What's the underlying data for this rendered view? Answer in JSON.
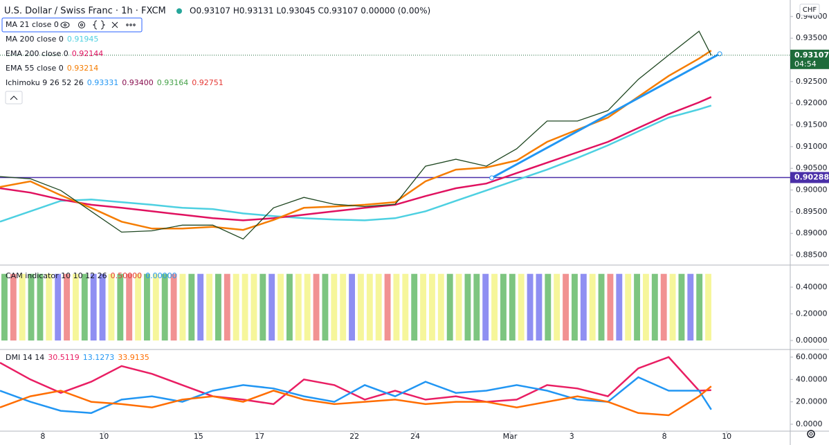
{
  "header": {
    "title": "U.S. Dollar / Swiss Franc · 1h · FXCM",
    "ohlc": "O0.93107 H0.93131 L0.93045 C0.93107 0.00000 (0.00%)"
  },
  "chart_data": [
    {
      "type": "line",
      "unit": "CHF",
      "xlim": [
        0,
        26
      ],
      "ylim": [
        0.8827,
        0.9438
      ],
      "yticks": [
        {
          "value": 0.885,
          "label": "0.88500"
        },
        {
          "value": 0.89,
          "label": "0.89000"
        },
        {
          "value": 0.895,
          "label": "0.89500"
        },
        {
          "value": 0.9,
          "label": "0.90000"
        },
        {
          "value": 0.905,
          "label": "0.90500"
        },
        {
          "value": 0.91,
          "label": "0.91000"
        },
        {
          "value": 0.915,
          "label": "0.91500"
        },
        {
          "value": 0.92,
          "label": "0.92000"
        },
        {
          "value": 0.925,
          "label": "0.92500"
        },
        {
          "value": 0.935,
          "label": "0.93500"
        },
        {
          "value": 0.94,
          "label": "0.94000"
        }
      ],
      "x": [
        0,
        1,
        2,
        3,
        4,
        5,
        6,
        7,
        8,
        9,
        10,
        11,
        12,
        13,
        14,
        15,
        16,
        17,
        18,
        19,
        20,
        21,
        22,
        23,
        23.4
      ],
      "series": [
        {
          "name": "MA 200 close 0",
          "color": "#4dd0e1",
          "legend_value": "0.91945",
          "values": [
            0.8927,
            0.8951,
            0.8975,
            0.8978,
            0.8972,
            0.8966,
            0.8959,
            0.8956,
            0.8946,
            0.894,
            0.8935,
            0.8932,
            0.893,
            0.8935,
            0.8951,
            0.8975,
            0.8999,
            0.9023,
            0.9047,
            0.9074,
            0.9103,
            0.9135,
            0.9167,
            0.9186,
            0.91945
          ]
        },
        {
          "name": "EMA 200 close 0",
          "color": "#e0115f",
          "legend_value": "0.92144",
          "values": [
            0.9004,
            0.8994,
            0.8978,
            0.8966,
            0.8959,
            0.8951,
            0.8943,
            0.8935,
            0.893,
            0.8935,
            0.8943,
            0.8951,
            0.8959,
            0.8966,
            0.8986,
            0.9004,
            0.9015,
            0.9039,
            0.9063,
            0.9087,
            0.9111,
            0.9143,
            0.9175,
            0.9202,
            0.92144
          ]
        },
        {
          "name": "EMA 55 close 0",
          "color": "#f57c00",
          "legend_value": "0.93214",
          "values": [
            0.9007,
            0.902,
            0.8988,
            0.8959,
            0.8927,
            0.8911,
            0.8911,
            0.8915,
            0.8908,
            0.8931,
            0.8959,
            0.8962,
            0.8966,
            0.8972,
            0.902,
            0.9047,
            0.9052,
            0.9068,
            0.9111,
            0.9139,
            0.9167,
            0.9215,
            0.9263,
            0.9303,
            0.93214
          ]
        },
        {
          "name": "MA 21 close 0",
          "color": "#1e4620",
          "values": [
            0.9031,
            0.9026,
            0.8999,
            0.8951,
            0.8903,
            0.8906,
            0.8919,
            0.8919,
            0.8887,
            0.8959,
            0.8983,
            0.8967,
            0.8962,
            0.8967,
            0.9055,
            0.9071,
            0.9055,
            0.9095,
            0.9159,
            0.9159,
            0.9183,
            0.9255,
            0.9311,
            0.9366,
            0.93107
          ]
        }
      ],
      "ichimoku": {
        "name": "Ichimoku 9 26 52 26",
        "values": [
          "0.93331",
          "0.93400",
          "0.93164",
          "0.92751"
        ],
        "colors": [
          "#2196f3",
          "#880e4f",
          "#43a047",
          "#e53935"
        ]
      },
      "trendline": {
        "x": [
          16.18,
          23.68
        ],
        "values": [
          0.9028,
          0.9314
        ],
        "color": "#2196f3"
      },
      "hline": {
        "value": 0.90288,
        "label": "0.90288",
        "color": "#4a2fa8"
      },
      "last_price": {
        "value": 0.93107,
        "label": "0.93107",
        "countdown": "04:54",
        "color": "#1e6b3a"
      }
    },
    {
      "type": "bar",
      "title": "CAM indicator 10 10 12 26",
      "legend_values": [
        "0.50000",
        "0.00000"
      ],
      "legend_colors": [
        "#e53935",
        "#2196f3"
      ],
      "ylim": [
        -0.0675,
        0.566
      ],
      "yticks": [
        {
          "value": 0,
          "label": "0.00000"
        },
        {
          "value": 0.2,
          "label": "0.20000"
        },
        {
          "value": 0.4,
          "label": "0.40000"
        }
      ],
      "values": [
        0.5,
        0.5,
        0.5,
        0.5,
        0.5,
        0.5,
        0.5,
        0.5,
        0.5,
        0.5,
        0.5,
        0.5,
        0.5,
        0.5,
        0.5,
        0.5,
        0.5,
        0.5,
        0.5,
        0.5,
        0.5,
        0.5,
        0.5,
        0.5,
        0.5,
        0.5,
        0.5,
        0.5,
        0.5,
        0.5,
        0.5,
        0.5,
        0.5,
        0.5,
        0.5,
        0.5,
        0.5,
        0.5,
        0.5,
        0.5,
        0.5,
        0.5,
        0.5,
        0.5,
        0.5,
        0.5,
        0.5,
        0.5,
        0.5,
        0.5,
        0.5,
        0.5,
        0.5,
        0.5,
        0.5,
        0.5,
        0.5,
        0.5,
        0.5,
        0.5,
        0.5,
        0.5,
        0.5,
        0.5,
        0.5,
        0.5,
        0.5,
        0.5,
        0.5,
        0.5,
        0.5,
        0.5,
        0.5,
        0.5,
        0.5,
        0.5,
        0.5,
        0.5,
        0.5,
        0.5
      ],
      "colors": [
        "#66bb6a",
        "#ef7f7f",
        "#f5f58a",
        "#66bb6a",
        "#66bb6a",
        "#f5f58a",
        "#7b7bf0",
        "#ef7f7f",
        "#f5f58a",
        "#66bb6a",
        "#7b7bf0",
        "#7b7bf0",
        "#f5f58a",
        "#66bb6a",
        "#ef7f7f",
        "#f5f58a",
        "#66bb6a",
        "#f5f58a",
        "#66bb6a",
        "#ef7f7f",
        "#f5f58a",
        "#66bb6a",
        "#7b7bf0",
        "#f5f58a",
        "#66bb6a",
        "#ef7f7f",
        "#f5f58a",
        "#f5f58a",
        "#f5f58a",
        "#66bb6a",
        "#7b7bf0",
        "#f5f58a",
        "#66bb6a",
        "#f5f58a",
        "#f5f58a",
        "#ef7f7f",
        "#66bb6a",
        "#f5f58a",
        "#f5f58a",
        "#7b7bf0",
        "#f5f58a",
        "#f5f58a",
        "#f5f58a",
        "#ef7f7f",
        "#f5f58a",
        "#f5f58a",
        "#66bb6a",
        "#f5f58a",
        "#f5f58a",
        "#f5f58a",
        "#66bb6a",
        "#f5f58a",
        "#66bb6a",
        "#66bb6a",
        "#7b7bf0",
        "#f5f58a",
        "#66bb6a",
        "#66bb6a",
        "#f5f58a",
        "#7b7bf0",
        "#7b7bf0",
        "#66bb6a",
        "#f5f58a",
        "#ef7f7f",
        "#66bb6a",
        "#7b7bf0",
        "#f5f58a",
        "#66bb6a",
        "#ef7f7f",
        "#7b7bf0",
        "#f5f58a",
        "#66bb6a",
        "#f5f58a",
        "#66bb6a",
        "#ef7f7f",
        "#f5f58a",
        "#66bb6a",
        "#7b7bf0",
        "#66bb6a",
        "#f5f58a"
      ]
    },
    {
      "type": "line",
      "title": "DMI 14 14",
      "xlim": [
        0,
        26
      ],
      "ylim": [
        -6.2,
        66.8
      ],
      "yticks": [
        {
          "value": 0,
          "label": "0.0000"
        },
        {
          "value": 20,
          "label": "20.0000"
        },
        {
          "value": 40,
          "label": "40.0000"
        },
        {
          "value": 60,
          "label": "60.0000"
        }
      ],
      "xticks": [
        {
          "value": 1.41,
          "label": "8"
        },
        {
          "value": 3.42,
          "label": "10"
        },
        {
          "value": 6.53,
          "label": "15"
        },
        {
          "value": 8.54,
          "label": "17"
        },
        {
          "value": 11.66,
          "label": "22"
        },
        {
          "value": 13.66,
          "label": "24"
        },
        {
          "value": 16.78,
          "label": "Mar"
        },
        {
          "value": 18.81,
          "label": "3"
        },
        {
          "value": 21.86,
          "label": "8"
        },
        {
          "value": 23.91,
          "label": "10"
        }
      ],
      "x": [
        0,
        1,
        2,
        3,
        4,
        5,
        6,
        7,
        8,
        9,
        10,
        11,
        12,
        13,
        14,
        15,
        16,
        17,
        18,
        19,
        20,
        21,
        22,
        23,
        23.4
      ],
      "series": [
        {
          "color": "#e91e63",
          "legend_value": "30.5119",
          "values": [
            55,
            40,
            28,
            38,
            52,
            45,
            35,
            25,
            22,
            18,
            40,
            35,
            22,
            30,
            22,
            25,
            20,
            22,
            35,
            32,
            25,
            50,
            60,
            30,
            30.5119
          ]
        },
        {
          "color": "#2196f3",
          "legend_value": "13.1273",
          "values": [
            30,
            20,
            12,
            10,
            22,
            25,
            20,
            30,
            35,
            32,
            25,
            20,
            35,
            25,
            38,
            28,
            30,
            35,
            30,
            22,
            20,
            42,
            30,
            30,
            13.1273
          ]
        },
        {
          "color": "#ff6d00",
          "legend_value": "33.9135",
          "values": [
            15,
            25,
            30,
            20,
            18,
            15,
            22,
            25,
            20,
            30,
            22,
            18,
            20,
            22,
            18,
            20,
            20,
            15,
            20,
            25,
            20,
            10,
            8,
            25,
            33.9135
          ]
        }
      ]
    }
  ]
}
